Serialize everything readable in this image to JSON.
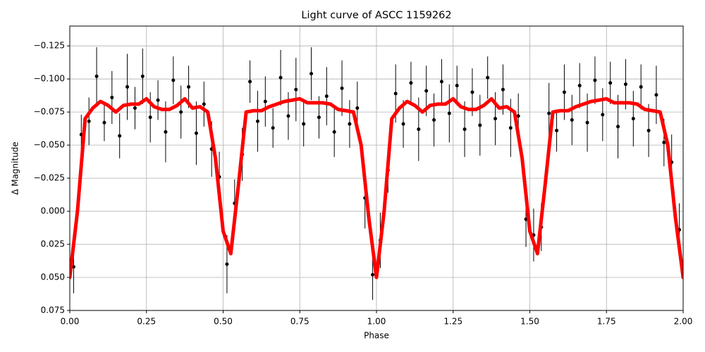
{
  "chart_data": {
    "type": "errorbar",
    "title": "Light curve of ASCC 1159262",
    "x_label": "Phase",
    "y_label": "Δ Magnitude",
    "xlim": [
      0,
      2
    ],
    "ylim": [
      0.075,
      -0.14
    ],
    "grid": true,
    "xticks": [
      {
        "value": 0,
        "label": "0.00"
      },
      {
        "value": 0.25,
        "label": "0.25"
      },
      {
        "value": 0.5,
        "label": "0.50"
      },
      {
        "value": 0.75,
        "label": "0.75"
      },
      {
        "value": 1,
        "label": "1.00"
      },
      {
        "value": 1.25,
        "label": "1.25"
      },
      {
        "value": 1.5,
        "label": "1.50"
      },
      {
        "value": 1.75,
        "label": "1.75"
      },
      {
        "value": 2,
        "label": "2.00"
      }
    ],
    "yticks": [
      {
        "value": -0.125,
        "label": "−0.125"
      },
      {
        "value": -0.1,
        "label": "−0.100"
      },
      {
        "value": -0.075,
        "label": "−0.075"
      },
      {
        "value": -0.05,
        "label": "−0.050"
      },
      {
        "value": -0.025,
        "label": "−0.025"
      },
      {
        "value": 0,
        "label": "0.000"
      },
      {
        "value": 0.025,
        "label": "0.025"
      },
      {
        "value": 0.05,
        "label": "0.050"
      },
      {
        "value": 0.075,
        "label": "0.075"
      }
    ],
    "series": [
      {
        "type": "errorbar",
        "color": "#000000",
        "x": [
          0.0125,
          0.0375,
          0.0625,
          0.0875,
          0.1125,
          0.1375,
          0.1625,
          0.1875,
          0.2125,
          0.2375,
          0.2625,
          0.2875,
          0.3125,
          0.3375,
          0.3625,
          0.3875,
          0.4125,
          0.4375,
          0.4625,
          0.4875,
          0.5125,
          0.5375,
          0.5625,
          0.5875,
          0.6125,
          0.6375,
          0.6625,
          0.6875,
          0.7125,
          0.7375,
          0.7625,
          0.7875,
          0.8125,
          0.8375,
          0.8625,
          0.8875,
          0.9125,
          0.9375,
          0.9625,
          0.9875,
          1.0125,
          1.0375,
          1.0625,
          1.0875,
          1.1125,
          1.1375,
          1.1625,
          1.1875,
          1.2125,
          1.2375,
          1.2625,
          1.2875,
          1.3125,
          1.3375,
          1.3625,
          1.3875,
          1.4125,
          1.4375,
          1.4625,
          1.4875,
          1.5125,
          1.5375,
          1.5625,
          1.5875,
          1.6125,
          1.6375,
          1.6625,
          1.6875,
          1.7125,
          1.7375,
          1.7625,
          1.7875,
          1.8125,
          1.8375,
          1.8625,
          1.8875,
          1.9125,
          1.9375,
          1.9625,
          1.9875
        ],
        "values": [
          0.042,
          -0.058,
          -0.068,
          -0.102,
          -0.067,
          -0.086,
          -0.057,
          -0.094,
          -0.078,
          -0.102,
          -0.071,
          -0.084,
          -0.06,
          -0.099,
          -0.075,
          -0.094,
          -0.059,
          -0.081,
          -0.047,
          -0.026,
          0.04,
          -0.006,
          -0.043,
          -0.098,
          -0.068,
          -0.083,
          -0.063,
          -0.101,
          -0.072,
          -0.092,
          -0.066,
          -0.104,
          -0.071,
          -0.087,
          -0.06,
          -0.093,
          -0.066,
          -0.078,
          -0.01,
          0.048,
          0.022,
          -0.031,
          -0.089,
          -0.066,
          -0.097,
          -0.062,
          -0.091,
          -0.069,
          -0.098,
          -0.074,
          -0.095,
          -0.062,
          -0.09,
          -0.065,
          -0.101,
          -0.07,
          -0.092,
          -0.063,
          -0.072,
          0.006,
          0.018,
          0.012,
          -0.074,
          -0.061,
          -0.09,
          -0.069,
          -0.095,
          -0.067,
          -0.099,
          -0.073,
          -0.097,
          -0.064,
          -0.096,
          -0.07,
          -0.094,
          -0.061,
          -0.088,
          -0.052,
          -0.037,
          0.014
        ],
        "errors": [
          0.02,
          0.015,
          0.018,
          0.022,
          0.014,
          0.02,
          0.017,
          0.025,
          0.016,
          0.021,
          0.019,
          0.015,
          0.023,
          0.018,
          0.02,
          0.016,
          0.024,
          0.017,
          0.021,
          0.019,
          0.022,
          0.018,
          0.02,
          0.016,
          0.023,
          0.019,
          0.015,
          0.021,
          0.018,
          0.024,
          0.017,
          0.02,
          0.016,
          0.022,
          0.019,
          0.021,
          0.018,
          0.02,
          0.023,
          0.019,
          0.021,
          0.017,
          0.022,
          0.018,
          0.016,
          0.024,
          0.019,
          0.02,
          0.017,
          0.022,
          0.015,
          0.021,
          0.018,
          0.023,
          0.016,
          0.02,
          0.019,
          0.022,
          0.017,
          0.021,
          0.02,
          0.018,
          0.023,
          0.016,
          0.021,
          0.019,
          0.017,
          0.022,
          0.018,
          0.02,
          0.016,
          0.024,
          0.019,
          0.021,
          0.017,
          0.02,
          0.022,
          0.018,
          0.021,
          0.02
        ]
      },
      {
        "type": "line",
        "color": "#ff0000",
        "x": [
          0,
          0.025,
          0.05,
          0.075,
          0.1,
          0.125,
          0.15,
          0.175,
          0.2,
          0.225,
          0.25,
          0.275,
          0.3,
          0.325,
          0.35,
          0.375,
          0.4,
          0.425,
          0.45,
          0.475,
          0.5,
          0.525,
          0.55,
          0.575,
          0.6,
          0.625,
          0.65,
          0.675,
          0.7,
          0.725,
          0.75,
          0.775,
          0.8,
          0.825,
          0.85,
          0.875,
          0.9,
          0.925,
          0.95,
          0.975,
          1,
          1.025,
          1.05,
          1.075,
          1.1,
          1.125,
          1.15,
          1.175,
          1.2,
          1.225,
          1.25,
          1.275,
          1.3,
          1.325,
          1.35,
          1.375,
          1.4,
          1.425,
          1.45,
          1.475,
          1.5,
          1.525,
          1.55,
          1.575,
          1.6,
          1.625,
          1.65,
          1.675,
          1.7,
          1.725,
          1.75,
          1.775,
          1.8,
          1.825,
          1.85,
          1.875,
          1.9,
          1.925,
          1.95,
          1.975,
          2
        ],
        "values": [
          0.05,
          0.0,
          -0.07,
          -0.078,
          -0.083,
          -0.08,
          -0.075,
          -0.08,
          -0.081,
          -0.081,
          -0.085,
          -0.079,
          -0.077,
          -0.077,
          -0.08,
          -0.085,
          -0.078,
          -0.079,
          -0.075,
          -0.04,
          0.015,
          0.032,
          -0.02,
          -0.075,
          -0.076,
          -0.076,
          -0.079,
          -0.081,
          -0.083,
          -0.084,
          -0.085,
          -0.082,
          -0.082,
          -0.082,
          -0.081,
          -0.077,
          -0.076,
          -0.075,
          -0.05,
          0.005,
          0.05,
          0.0,
          -0.07,
          -0.078,
          -0.083,
          -0.08,
          -0.075,
          -0.08,
          -0.081,
          -0.081,
          -0.085,
          -0.079,
          -0.077,
          -0.077,
          -0.08,
          -0.085,
          -0.078,
          -0.079,
          -0.075,
          -0.04,
          0.015,
          0.032,
          -0.02,
          -0.075,
          -0.076,
          -0.076,
          -0.079,
          -0.081,
          -0.083,
          -0.084,
          -0.085,
          -0.082,
          -0.082,
          -0.082,
          -0.081,
          -0.077,
          -0.076,
          -0.075,
          -0.05,
          0.005,
          0.05
        ]
      }
    ]
  }
}
